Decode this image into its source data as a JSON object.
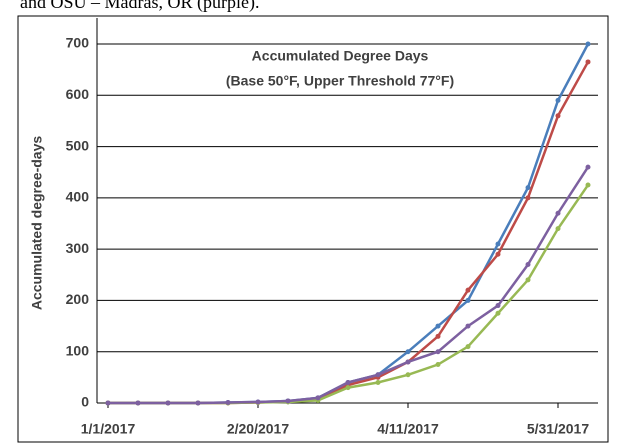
{
  "caption": "and OSU – Madras, OR (purple).",
  "chart_data": {
    "type": "line",
    "title": "Accumulated Degree Days",
    "subtitle": "(Base 50°F, Upper Threshold 77°F)",
    "y_label": "Accumulated degree-days",
    "x": [
      "2017-01-01",
      "2017-01-11",
      "2017-01-21",
      "2017-01-31",
      "2017-02-10",
      "2017-02-20",
      "2017-03-02",
      "2017-03-12",
      "2017-03-22",
      "2017-04-01",
      "2017-04-11",
      "2017-04-21",
      "2017-05-01",
      "2017-05-11",
      "2017-05-21",
      "2017-05-31",
      "2017-06-10"
    ],
    "series": [
      {
        "color": "#4a7ebb",
        "values": [
          0,
          0,
          0,
          0,
          1,
          2,
          4,
          10,
          40,
          55,
          100,
          150,
          200,
          310,
          420,
          590,
          700
        ]
      },
      {
        "color": "#be4b48",
        "values": [
          0,
          0,
          0,
          0,
          0,
          1,
          3,
          8,
          35,
          50,
          80,
          130,
          220,
          290,
          400,
          560,
          665
        ]
      },
      {
        "color": "#98b954",
        "values": [
          0,
          0,
          0,
          0,
          0,
          1,
          2,
          5,
          30,
          40,
          55,
          75,
          110,
          175,
          240,
          340,
          425
        ]
      },
      {
        "color": "#7d60a0",
        "values": [
          0,
          0,
          0,
          0,
          1,
          2,
          4,
          10,
          40,
          55,
          80,
          100,
          150,
          190,
          270,
          370,
          460
        ]
      }
    ],
    "xlim": [
      "2017-01-01",
      "2017-06-10"
    ],
    "xticks": [
      {
        "value": "2017-01-01",
        "label": "1/1/2017"
      },
      {
        "value": "2017-02-20",
        "label": "2/20/2017"
      },
      {
        "value": "2017-04-11",
        "label": "4/11/2017"
      },
      {
        "value": "2017-05-31",
        "label": "5/31/2017"
      }
    ],
    "ylim": [
      0,
      700
    ],
    "yticks": [
      0,
      100,
      200,
      300,
      400,
      500,
      600,
      700
    ],
    "grid": true
  }
}
